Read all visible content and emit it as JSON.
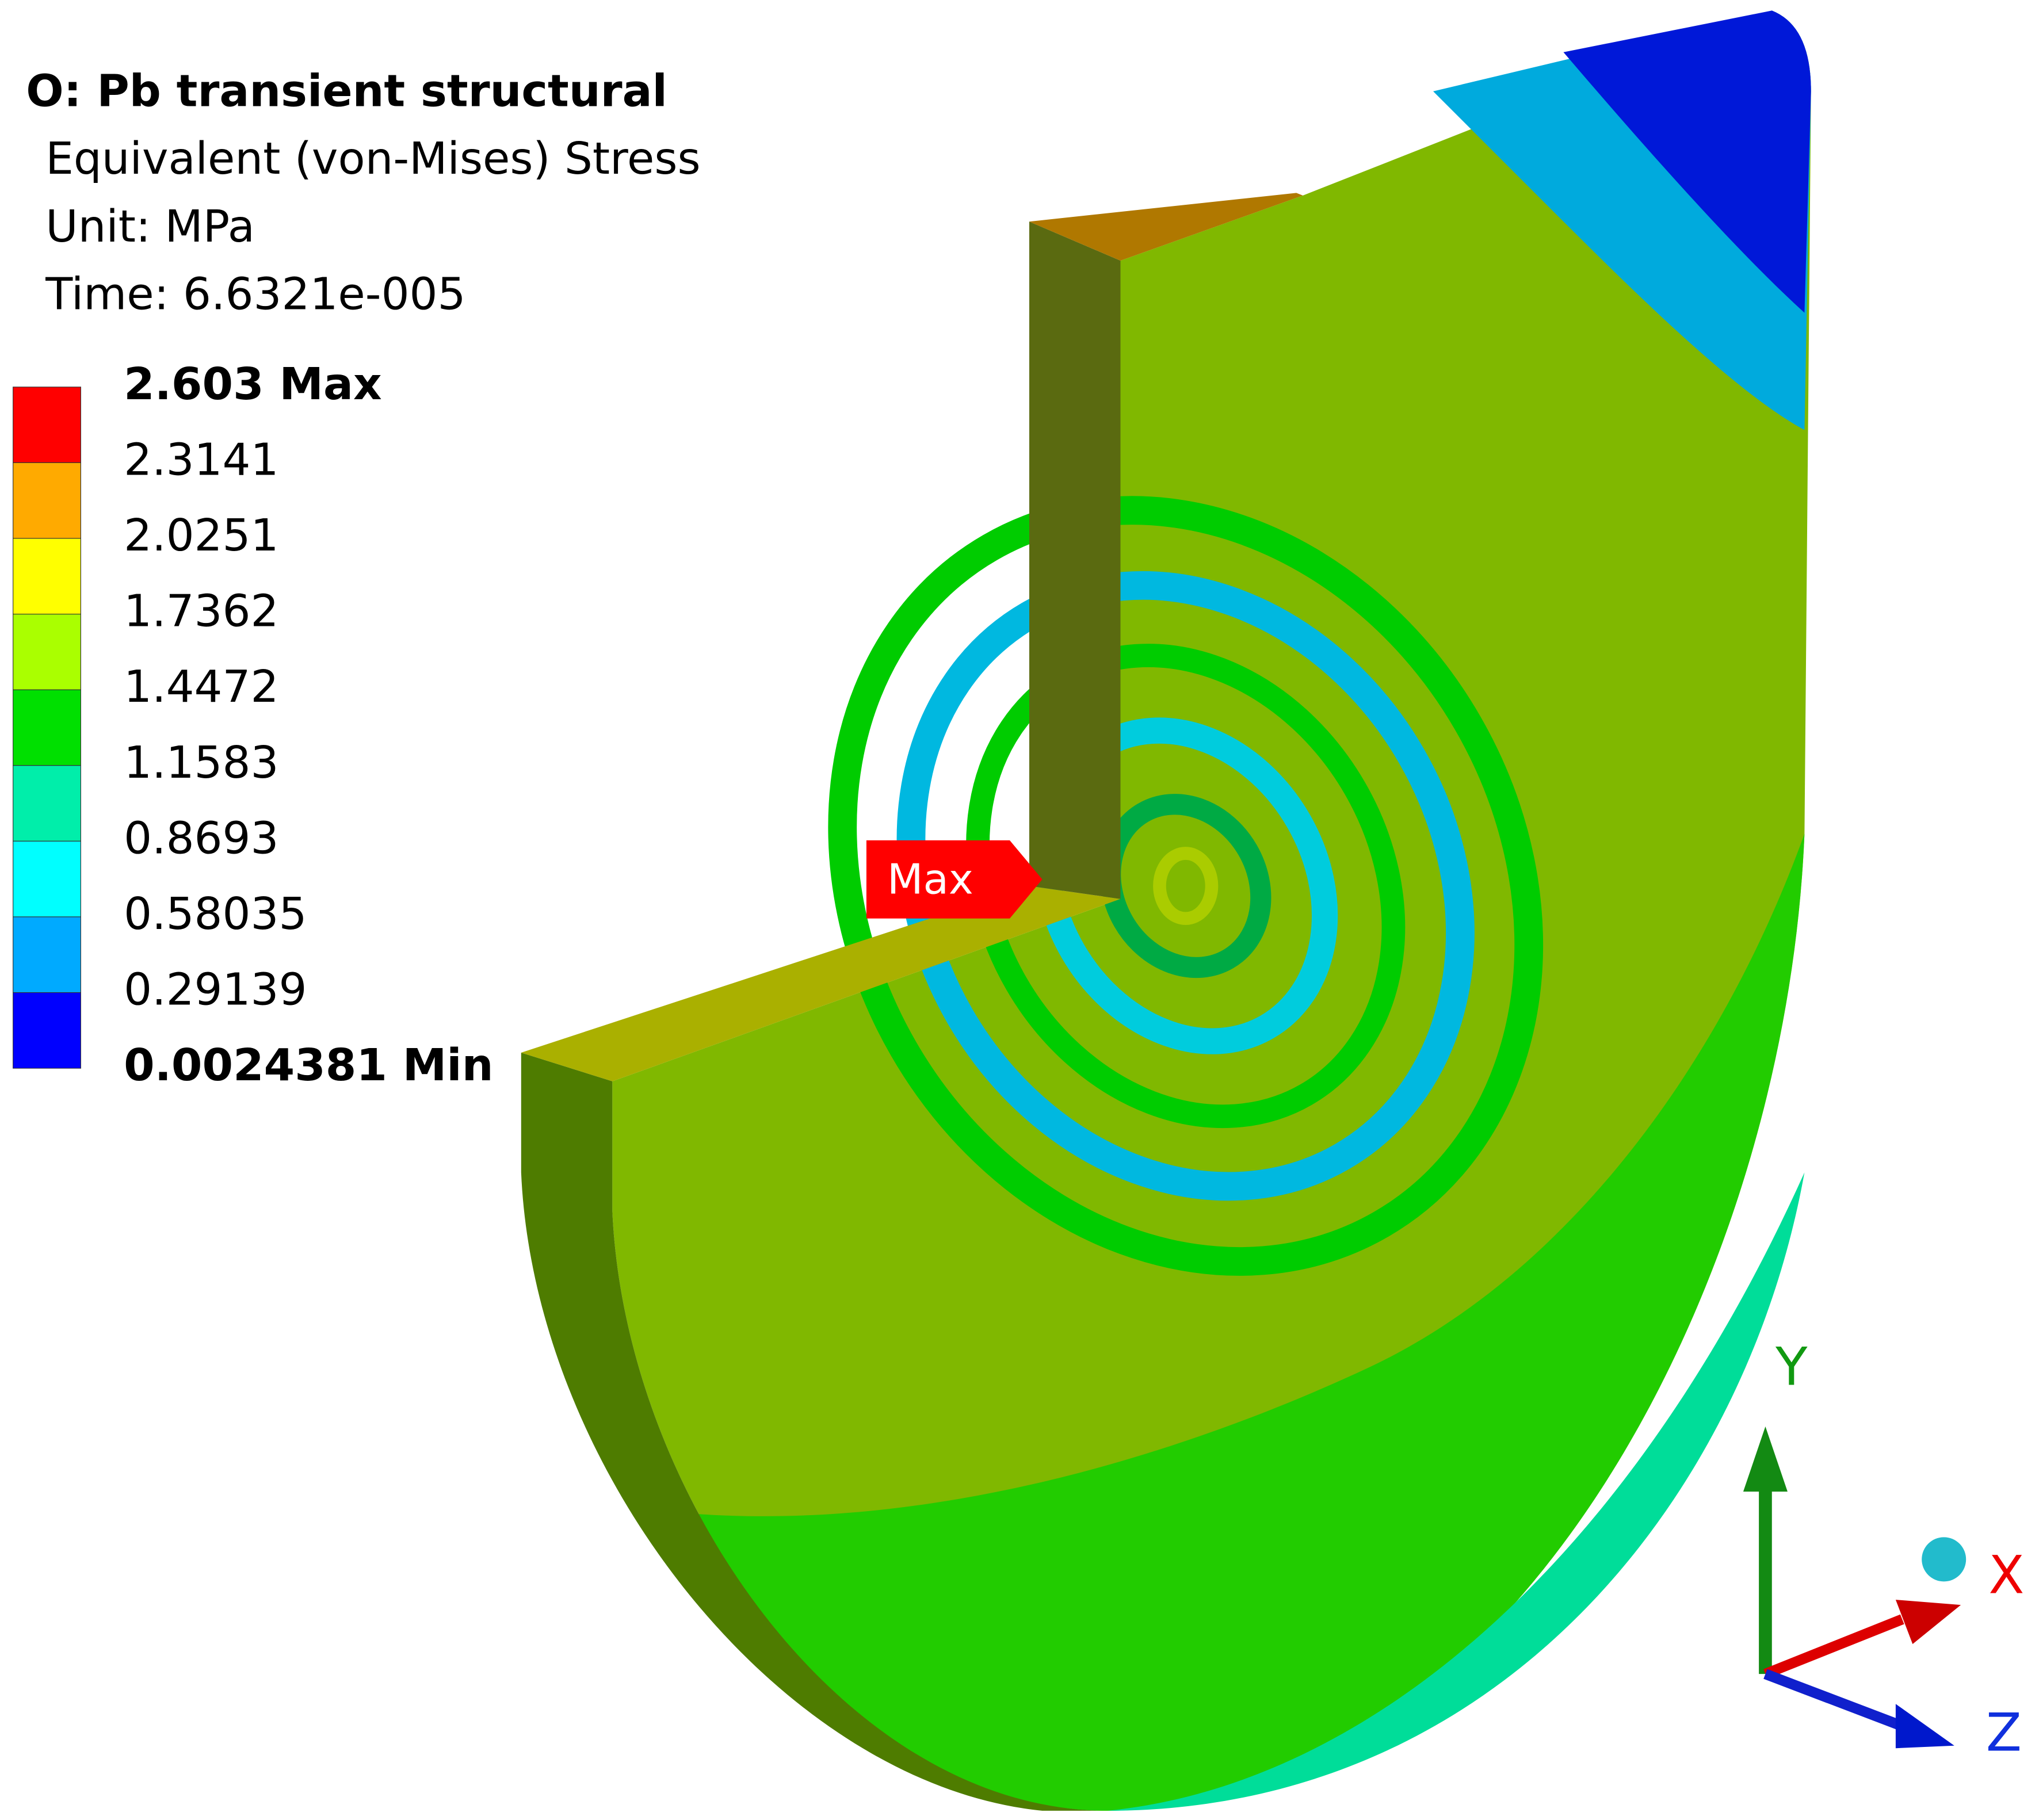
{
  "header": {
    "title": "O: Pb transient structural",
    "result": "Equivalent (von-Mises) Stress",
    "unit": "Unit: MPa",
    "time": "Time: 6.6321e-005"
  },
  "legend": {
    "labels": [
      "2.603 Max",
      "2.3141",
      "2.0251",
      "1.7362",
      "1.4472",
      "1.1583",
      "0.8693",
      "0.58035",
      "0.29139",
      "0.0024381 Min"
    ],
    "colors": [
      "#ff0000",
      "#ffaa00",
      "#ffff00",
      "#aaff00",
      "#00e000",
      "#00eeaa",
      "#00ffff",
      "#00aaff",
      "#0000ff"
    ]
  },
  "probe": {
    "label": "Max"
  },
  "triad": {
    "y": "Y",
    "x": "X",
    "z": "Z"
  }
}
